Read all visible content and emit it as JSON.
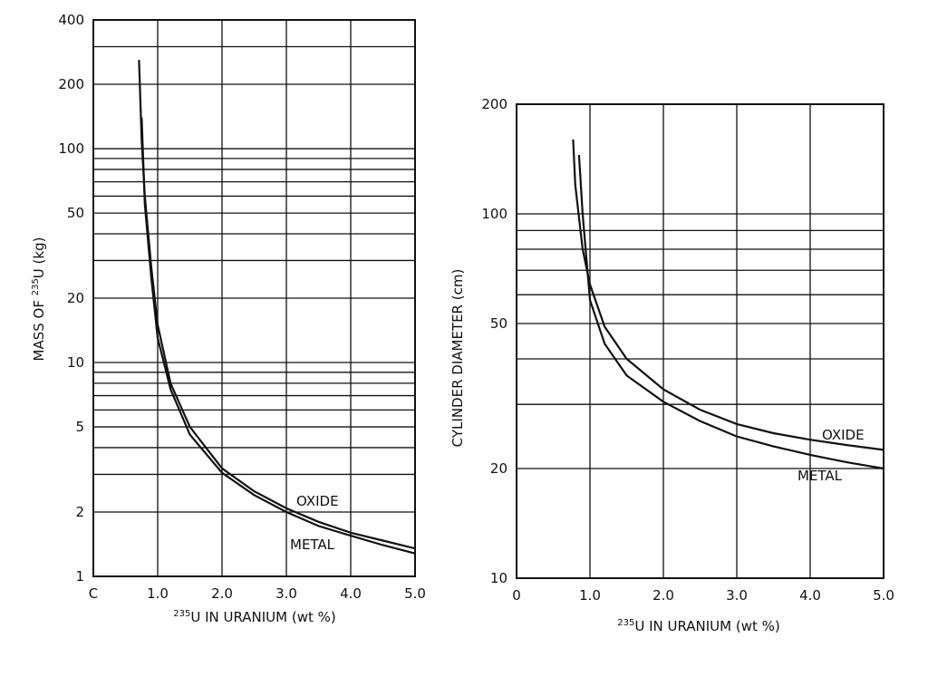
{
  "chart_data": [
    {
      "type": "line",
      "xlabel": "U IN URANIUM (wt %)",
      "xlabel_sup": "235",
      "ylabel": "MASS OF U (kg)",
      "ylabel_sup": "235",
      "xlim": [
        0,
        5
      ],
      "ylim": [
        1,
        400
      ],
      "yscale": "log",
      "grid": true,
      "x_ticks": [
        0,
        1,
        2,
        3,
        4,
        5
      ],
      "x_tick_labels": [
        "C",
        "1.0",
        "2.0",
        "3.0",
        "4.0",
        "5.0"
      ],
      "y_ticks": [
        1,
        2,
        5,
        10,
        20,
        50,
        100,
        200,
        400
      ],
      "y_tick_labels": [
        "1",
        "2",
        "5",
        "10",
        "20",
        "50",
        "100",
        "200",
        "400"
      ],
      "y_gridlines": [
        1,
        2,
        3,
        4,
        5,
        6,
        7,
        8,
        9,
        10,
        20,
        30,
        40,
        50,
        60,
        70,
        80,
        90,
        100,
        200,
        300,
        400
      ],
      "series": [
        {
          "name": "OXIDE",
          "x": [
            0.71,
            0.75,
            0.8,
            0.9,
            1.0,
            1.2,
            1.5,
            2.0,
            2.5,
            3.0,
            3.5,
            4.0,
            4.5,
            5.0
          ],
          "y": [
            260,
            110,
            60,
            28,
            15,
            8.0,
            5.0,
            3.2,
            2.5,
            2.08,
            1.8,
            1.6,
            1.47,
            1.35
          ]
        },
        {
          "name": "METAL",
          "x": [
            0.75,
            0.8,
            0.9,
            1.0,
            1.2,
            1.5,
            2.0,
            2.5,
            3.0,
            3.5,
            4.0,
            4.5,
            5.0
          ],
          "y": [
            140,
            55,
            25,
            13,
            7.5,
            4.6,
            3.05,
            2.4,
            2.0,
            1.72,
            1.55,
            1.4,
            1.28
          ]
        }
      ]
    },
    {
      "type": "line",
      "xlabel": "U IN URANIUM (wt %)",
      "xlabel_sup": "235",
      "ylabel": "CYLINDER DIAMETER (cm)",
      "xlim": [
        0,
        5
      ],
      "ylim": [
        10,
        200
      ],
      "yscale": "log",
      "grid": true,
      "x_ticks": [
        0,
        1,
        2,
        3,
        4,
        5
      ],
      "x_tick_labels": [
        "0",
        "1.0",
        "2.0",
        "3.0",
        "4.0",
        "5.0"
      ],
      "y_ticks": [
        10,
        20,
        50,
        100,
        200
      ],
      "y_tick_labels": [
        "10",
        "20",
        "50",
        "100",
        "200"
      ],
      "y_gridlines": [
        10,
        20,
        30,
        40,
        50,
        60,
        70,
        80,
        90,
        100,
        200
      ],
      "series": [
        {
          "name": "OXIDE",
          "x": [
            0.77,
            0.8,
            0.9,
            1.0,
            1.2,
            1.5,
            2.0,
            2.5,
            3.0,
            3.5,
            4.0,
            4.5,
            5.0
          ],
          "y": [
            160,
            120,
            80,
            64,
            49,
            40,
            33,
            29,
            26.5,
            25,
            24,
            23.2,
            22.5
          ]
        },
        {
          "name": "METAL",
          "x": [
            0.85,
            0.9,
            1.0,
            1.2,
            1.5,
            2.0,
            2.5,
            3.0,
            3.5,
            4.0,
            4.5,
            5.0
          ],
          "y": [
            145,
            100,
            58,
            44,
            36,
            30.5,
            27,
            24.5,
            23,
            21.8,
            20.8,
            20
          ]
        }
      ]
    }
  ]
}
